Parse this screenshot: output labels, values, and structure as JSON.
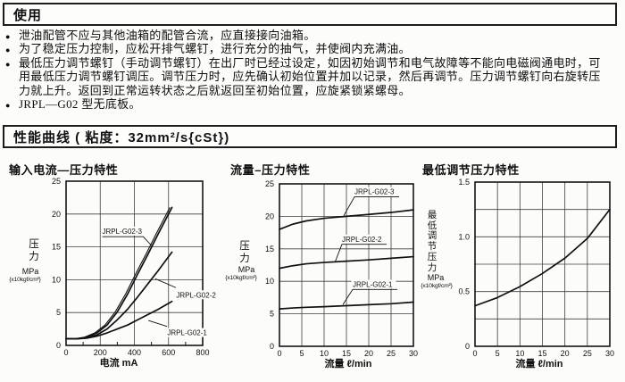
{
  "usage": {
    "title": "使用",
    "bullets": [
      "泄油配管不应与其他油箱的配管合流，应直接接向油箱。",
      "为了稳定压力控制，应松开排气螺钉，进行充分的抽气，并使阀内充满油。",
      "最低压力调节螺钉（手动调节螺钉）在出厂时已经过设定，如因初始调节和电气故障等不能向电磁阀通电时，可\n用最低压力调节螺钉调压。调节压力时，应先确认初始位置并加以记录，然后再调节。压力调节螺钉向右旋转压\n力就上升。返回到正常运转状态之后就返回至初始位置，应旋紧锁紧螺母。",
      "JRPL—G02 型无底板。"
    ]
  },
  "curves_section": {
    "title": "性能曲线 ( 粘度：32mm²/s{cSt})"
  },
  "chart_data": [
    {
      "type": "line",
      "title": "输入电流—压力特性",
      "xlabel": "电流 mA",
      "ylabel": "压\n力",
      "y_unit_1": "MPa",
      "y_unit_2": "{x10kgf/cm²}",
      "xlim": [
        0,
        800
      ],
      "ylim": [
        0,
        25
      ],
      "xticks": [
        0,
        200,
        400,
        600,
        800
      ],
      "yticks": [
        0,
        5,
        10,
        15,
        20,
        25
      ],
      "xgrid": [
        200,
        400,
        600
      ],
      "ygrid": [
        5,
        10,
        15,
        20
      ],
      "xminor": [
        100,
        300,
        500,
        700
      ],
      "series": [
        {
          "name": "JRPL-G02-3",
          "double": true,
          "x": [
            0,
            60,
            120,
            180,
            240,
            300,
            360,
            420,
            480,
            540,
            600,
            620
          ],
          "y": [
            1.0,
            1.0,
            1.25,
            1.9,
            3.1,
            5.1,
            7.8,
            10.9,
            13.9,
            17.0,
            20.0,
            21.0
          ]
        },
        {
          "name": "JRPL-G02-2",
          "x": [
            0,
            60,
            120,
            180,
            240,
            300,
            360,
            420,
            480,
            540,
            600,
            620
          ],
          "y": [
            1.0,
            1.0,
            1.15,
            1.6,
            2.5,
            3.9,
            5.5,
            7.4,
            9.4,
            11.4,
            13.5,
            14.2
          ]
        },
        {
          "name": "JRPL-G02-1",
          "x": [
            0,
            60,
            120,
            180,
            240,
            300,
            360,
            420,
            480,
            540,
            600,
            620
          ],
          "y": [
            1.0,
            1.0,
            1.1,
            1.4,
            1.9,
            2.5,
            3.1,
            3.9,
            4.7,
            5.5,
            6.4,
            6.7
          ]
        }
      ],
      "labels": [
        {
          "text": "JRPL-G02-3",
          "tx": 212,
          "ty": 17.0,
          "leader": [
            [
              212,
              16.55
            ],
            [
              452,
              16.55
            ],
            [
              500,
              15.2
            ]
          ]
        },
        {
          "text": "JRPL-G02-2",
          "tx": 645,
          "ty": 7.3,
          "leader": [
            [
              643,
              8.8
            ],
            [
              522,
              10.15
            ]
          ]
        },
        {
          "text": "JRPL-G02-1",
          "tx": 593,
          "ty": 1.55,
          "leader": [
            [
              591,
              2.9
            ],
            [
              482,
              3.8
            ]
          ]
        }
      ]
    },
    {
      "type": "line",
      "title": "流量–压力特性",
      "xlabel": "流量 ℓ/min",
      "ylabel": "压\n力",
      "y_unit_1": "MPa",
      "y_unit_2": "{x10kgf/cm²}",
      "xlim": [
        0,
        30
      ],
      "ylim": [
        0,
        25
      ],
      "xticks": [
        0,
        5,
        10,
        15,
        20,
        25,
        30
      ],
      "yticks": [
        0,
        5,
        10,
        15,
        20,
        25
      ],
      "xgrid": [
        5,
        10,
        15,
        20,
        25
      ],
      "ygrid": [
        5,
        10,
        15,
        20
      ],
      "series": [
        {
          "name": "JRPL-G02-3",
          "x": [
            0,
            3,
            6,
            10,
            15,
            20,
            25,
            30
          ],
          "y": [
            18.0,
            18.8,
            19.3,
            19.7,
            20.0,
            20.3,
            20.6,
            21.0
          ]
        },
        {
          "name": "JRPL-G02-2",
          "x": [
            0,
            3,
            6,
            10,
            15,
            20,
            25,
            30
          ],
          "y": [
            12.0,
            12.4,
            12.7,
            12.9,
            13.1,
            13.3,
            13.55,
            13.8
          ]
        },
        {
          "name": "JRPL-G02-1",
          "x": [
            0,
            3,
            6,
            10,
            15,
            20,
            25,
            30
          ],
          "y": [
            5.75,
            5.9,
            6.0,
            6.1,
            6.25,
            6.4,
            6.55,
            6.8
          ]
        }
      ],
      "labels": [
        {
          "text": "JRPL-G02-3",
          "tx": 16.8,
          "ty": 23.4,
          "leader": [
            [
              26.8,
              23.0
            ],
            [
              16.8,
              23.0
            ],
            [
              14.4,
              20.1
            ]
          ]
        },
        {
          "text": "JRPL-G02-2",
          "tx": 14.0,
          "ty": 16.1,
          "leader": [
            [
              24.0,
              15.7
            ],
            [
              14.0,
              15.7
            ],
            [
              12.5,
              13.05
            ]
          ]
        },
        {
          "text": "JRPL-G02-1",
          "tx": 16.4,
          "ty": 9.15,
          "leader": [
            [
              26.4,
              8.75
            ],
            [
              16.4,
              8.75
            ],
            [
              14.2,
              6.4
            ]
          ]
        }
      ]
    },
    {
      "type": "line",
      "title": "最低调节压力特性",
      "xlabel": "流量 ℓ/min",
      "ylabel": "最\n低\n调\n节\n压\n力",
      "y_unit_1": "MPa",
      "y_unit_2": "{x10kgf/cm²}",
      "xlim": [
        0,
        30
      ],
      "ylim": [
        0,
        1.5
      ],
      "xticks": [
        0,
        5,
        10,
        15,
        20,
        25,
        30
      ],
      "yticks": [
        0,
        0.5,
        1.0,
        1.5
      ],
      "ytick_labels": [
        "0",
        "0.5",
        "1.0",
        "1.5"
      ],
      "xgrid": [
        5,
        10,
        15,
        20,
        25
      ],
      "ygrid": [
        0.25,
        0.5,
        0.75,
        1.0,
        1.25
      ],
      "series": [
        {
          "name": "",
          "x": [
            0,
            5,
            10,
            15,
            20,
            25,
            30
          ],
          "y": [
            0.37,
            0.445,
            0.545,
            0.665,
            0.805,
            0.985,
            1.25
          ]
        }
      ],
      "labels": []
    }
  ]
}
